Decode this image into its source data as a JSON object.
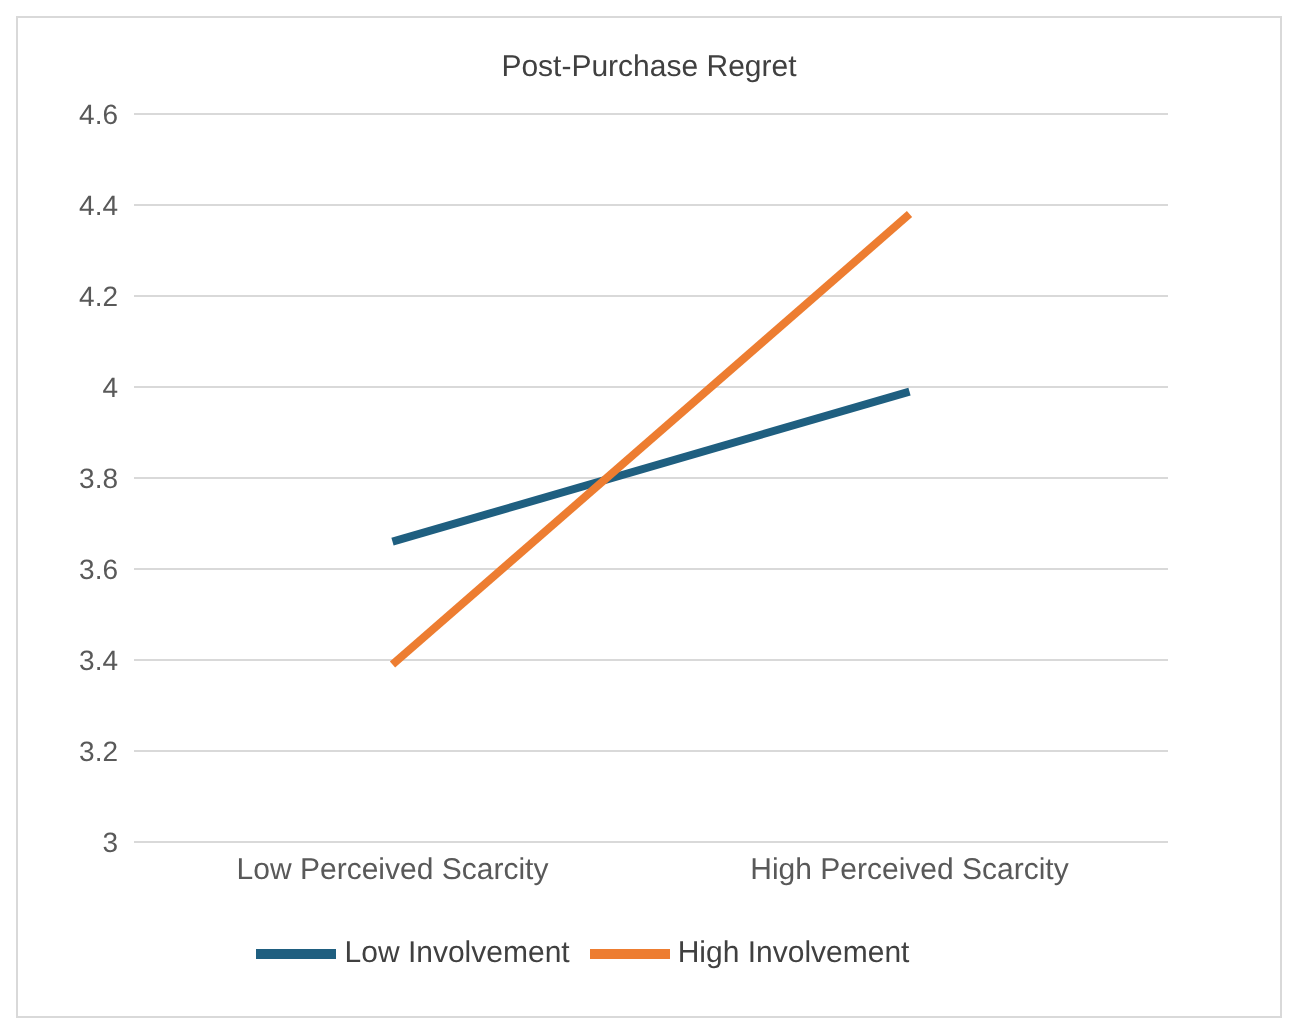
{
  "chart_data": {
    "type": "line",
    "title": "Post-Purchase Regret",
    "categories": [
      "Low Perceived Scarcity",
      "High Perceived Scarcity"
    ],
    "series": [
      {
        "name": "Low Involvement",
        "color": "#1f5f80",
        "values": [
          3.66,
          3.99
        ]
      },
      {
        "name": "High Involvement",
        "color": "#ed7d31",
        "values": [
          3.39,
          4.38
        ]
      }
    ],
    "ylim": [
      3,
      4.6
    ],
    "yticks": [
      3,
      3.2,
      3.4,
      3.6,
      3.8,
      4,
      4.2,
      4.4,
      4.6
    ],
    "grid": "y",
    "legend": "bottom",
    "marker": "none",
    "line_style": "solid"
  }
}
